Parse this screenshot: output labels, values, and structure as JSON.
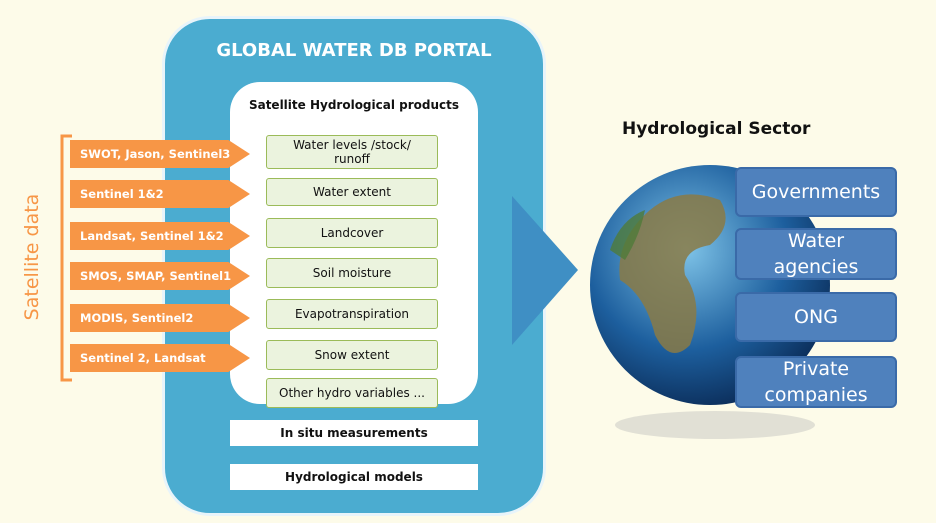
{
  "portal": {
    "title": "GLOBAL WATER DB PORTAL",
    "products_title": "Satellite Hydrological products",
    "products": [
      "Water levels /stock/ runoff",
      "Water extent",
      "Landcover",
      "Soil moisture",
      "Evapotranspiration",
      "Snow extent",
      "Other hydro variables ..."
    ],
    "in_situ": "In situ measurements",
    "models": "Hydrological models"
  },
  "satellite_data": {
    "label": "Satellite data",
    "sources": [
      "SWOT, Jason, Sentinel3",
      "Sentinel 1&2",
      "Landsat, Sentinel 1&2",
      "SMOS, SMAP, Sentinel1",
      "MODIS, Sentinel2",
      "Sentinel 2, Landsat"
    ]
  },
  "sector": {
    "title": "Hydrological Sector",
    "users": [
      "Governments",
      "Water agencies",
      "ONG",
      "Private companies"
    ]
  }
}
